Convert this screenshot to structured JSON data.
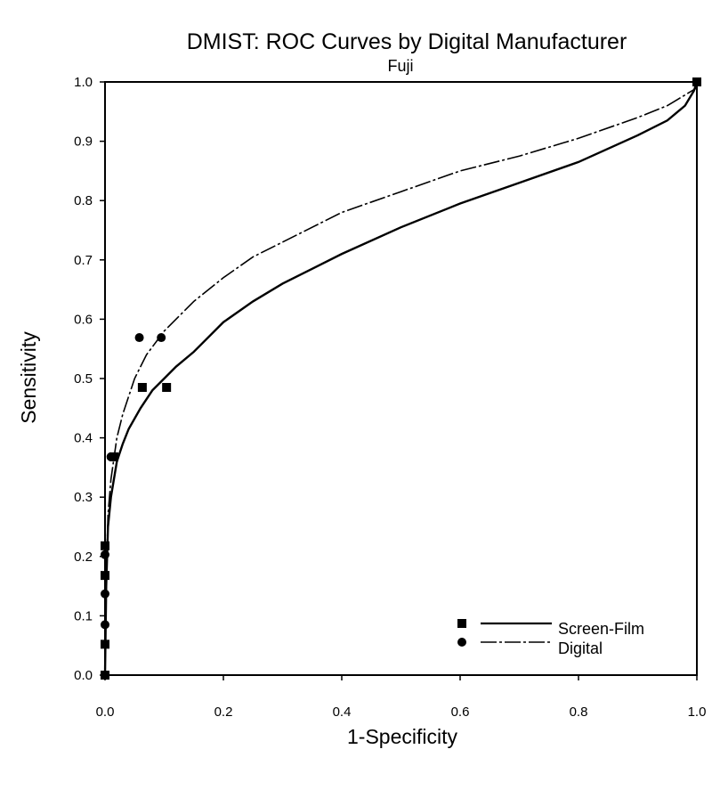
{
  "chart_data": {
    "type": "line",
    "title": "DMIST: ROC Curves by Digital Manufacturer",
    "subtitle": "Fuji",
    "xlabel": "1-Specificity",
    "ylabel": "Sensitivity",
    "xlim": [
      0,
      1
    ],
    "ylim": [
      0,
      1
    ],
    "xticks": [
      "0.0",
      "0.2",
      "0.4",
      "0.6",
      "0.8",
      "1.0"
    ],
    "yticks": [
      "0.0",
      "0.1",
      "0.2",
      "0.3",
      "0.4",
      "0.5",
      "0.6",
      "0.7",
      "0.8",
      "0.9",
      "1.0"
    ],
    "grid": false,
    "legend_position": "bottom-right",
    "series": [
      {
        "name": "Screen-Film",
        "line_style": "solid",
        "marker": "square",
        "color": "#000000",
        "curve": [
          [
            0,
            0
          ],
          [
            0.002,
            0.15
          ],
          [
            0.005,
            0.25
          ],
          [
            0.01,
            0.3
          ],
          [
            0.02,
            0.36
          ],
          [
            0.03,
            0.39
          ],
          [
            0.04,
            0.415
          ],
          [
            0.06,
            0.45
          ],
          [
            0.08,
            0.48
          ],
          [
            0.1,
            0.5
          ],
          [
            0.12,
            0.52
          ],
          [
            0.15,
            0.545
          ],
          [
            0.2,
            0.595
          ],
          [
            0.25,
            0.63
          ],
          [
            0.3,
            0.66
          ],
          [
            0.35,
            0.685
          ],
          [
            0.4,
            0.71
          ],
          [
            0.5,
            0.755
          ],
          [
            0.6,
            0.795
          ],
          [
            0.7,
            0.83
          ],
          [
            0.8,
            0.865
          ],
          [
            0.9,
            0.91
          ],
          [
            0.95,
            0.935
          ],
          [
            0.98,
            0.96
          ],
          [
            0.995,
            0.985
          ],
          [
            1,
            1
          ]
        ],
        "points": [
          [
            0,
            0
          ],
          [
            0,
            0.052
          ],
          [
            0,
            0.168
          ],
          [
            0,
            0.218
          ],
          [
            0.015,
            0.368
          ],
          [
            0.063,
            0.485
          ],
          [
            0.104,
            0.485
          ],
          [
            1,
            1
          ]
        ]
      },
      {
        "name": "Digital",
        "line_style": "dash-dot",
        "marker": "circle",
        "color": "#000000",
        "curve": [
          [
            0,
            0
          ],
          [
            0.002,
            0.16
          ],
          [
            0.005,
            0.27
          ],
          [
            0.01,
            0.33
          ],
          [
            0.02,
            0.4
          ],
          [
            0.03,
            0.44
          ],
          [
            0.05,
            0.5
          ],
          [
            0.07,
            0.54
          ],
          [
            0.1,
            0.58
          ],
          [
            0.15,
            0.63
          ],
          [
            0.2,
            0.67
          ],
          [
            0.25,
            0.705
          ],
          [
            0.3,
            0.73
          ],
          [
            0.4,
            0.78
          ],
          [
            0.5,
            0.815
          ],
          [
            0.6,
            0.85
          ],
          [
            0.7,
            0.875
          ],
          [
            0.8,
            0.905
          ],
          [
            0.9,
            0.94
          ],
          [
            0.95,
            0.96
          ],
          [
            1,
            0.99
          ]
        ],
        "points": [
          [
            0,
            0.085
          ],
          [
            0,
            0.137
          ],
          [
            0,
            0.203
          ],
          [
            0.01,
            0.368
          ],
          [
            0.058,
            0.569
          ],
          [
            0.095,
            0.569
          ]
        ]
      }
    ]
  }
}
